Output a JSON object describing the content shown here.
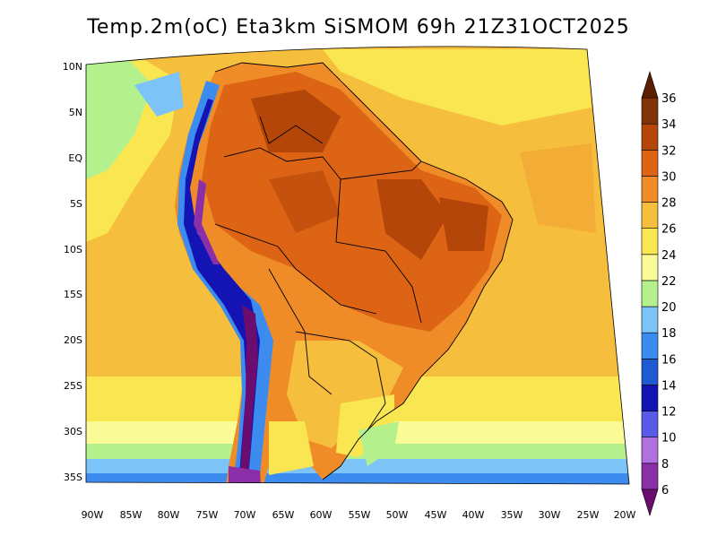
{
  "title": "Temp.2m(oC)  Eta3km  SiSMOM  69h  21Z31OCT2025",
  "lat_labels": [
    "10N",
    "5N",
    "EQ",
    "5S",
    "10S",
    "15S",
    "20S",
    "25S",
    "30S",
    "35S"
  ],
  "lon_labels": [
    "90W",
    "85W",
    "80W",
    "75W",
    "70W",
    "65W",
    "60W",
    "55W",
    "50W",
    "45W",
    "40W",
    "35W",
    "30W",
    "25W",
    "20W"
  ],
  "colorbar": {
    "labels": [
      "6",
      "8",
      "10",
      "12",
      "14",
      "16",
      "18",
      "20",
      "22",
      "24",
      "26",
      "28",
      "30",
      "32",
      "34",
      "36"
    ],
    "colors": [
      "#6a0d6e",
      "#8b2fa8",
      "#b070e0",
      "#5a5ae8",
      "#1414b4",
      "#1e5ad2",
      "#3c8cf0",
      "#7cc4f8",
      "#b4f08c",
      "#fafa96",
      "#fae650",
      "#f5be3c",
      "#f08c28",
      "#dc6414",
      "#b4460a",
      "#823208",
      "#5a1e00"
    ]
  }
}
